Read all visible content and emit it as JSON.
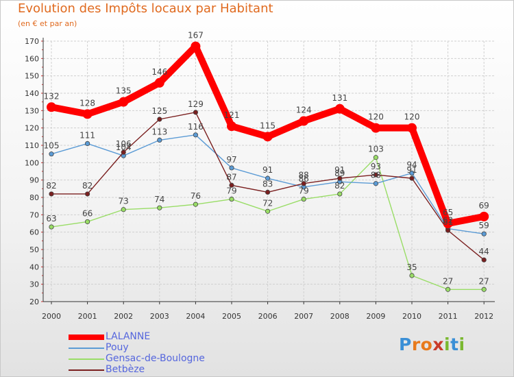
{
  "chart_data": {
    "type": "line",
    "title": "Evolution des Impôts locaux par Habitant",
    "subtitle": "(en € et par an)",
    "xlabel": "",
    "ylabel": "",
    "categories": [
      "2000",
      "2001",
      "2002",
      "2003",
      "2004",
      "2005",
      "2006",
      "2007",
      "2008",
      "2009",
      "2010",
      "2011",
      "2012"
    ],
    "ylim": [
      20,
      170
    ],
    "yticks": [
      20,
      30,
      40,
      50,
      60,
      70,
      80,
      90,
      100,
      110,
      120,
      130,
      140,
      150,
      160,
      170
    ],
    "grid": true,
    "series": [
      {
        "name": "LALANNE",
        "color": "#ff0000",
        "values": [
          132,
          128,
          135,
          146,
          167,
          121,
          115,
          124,
          131,
          120,
          120,
          65,
          69
        ]
      },
      {
        "name": "Pouy",
        "color": "#5b9bd5",
        "values": [
          105,
          111,
          104,
          113,
          116,
          97,
          91,
          86,
          89,
          88,
          94,
          62,
          59
        ]
      },
      {
        "name": "Gensac-de-Boulogne",
        "color": "#99dd66",
        "values": [
          63,
          66,
          73,
          74,
          76,
          79,
          72,
          79,
          82,
          103,
          35,
          27,
          27
        ]
      },
      {
        "name": "Betbèze",
        "color": "#7a1f1f",
        "values": [
          82,
          82,
          106,
          125,
          129,
          87,
          83,
          88,
          91,
          93,
          91,
          61,
          44
        ]
      }
    ]
  },
  "logo": {
    "letters": [
      "P",
      "r",
      "o",
      "x",
      "i",
      "t",
      "i"
    ]
  }
}
